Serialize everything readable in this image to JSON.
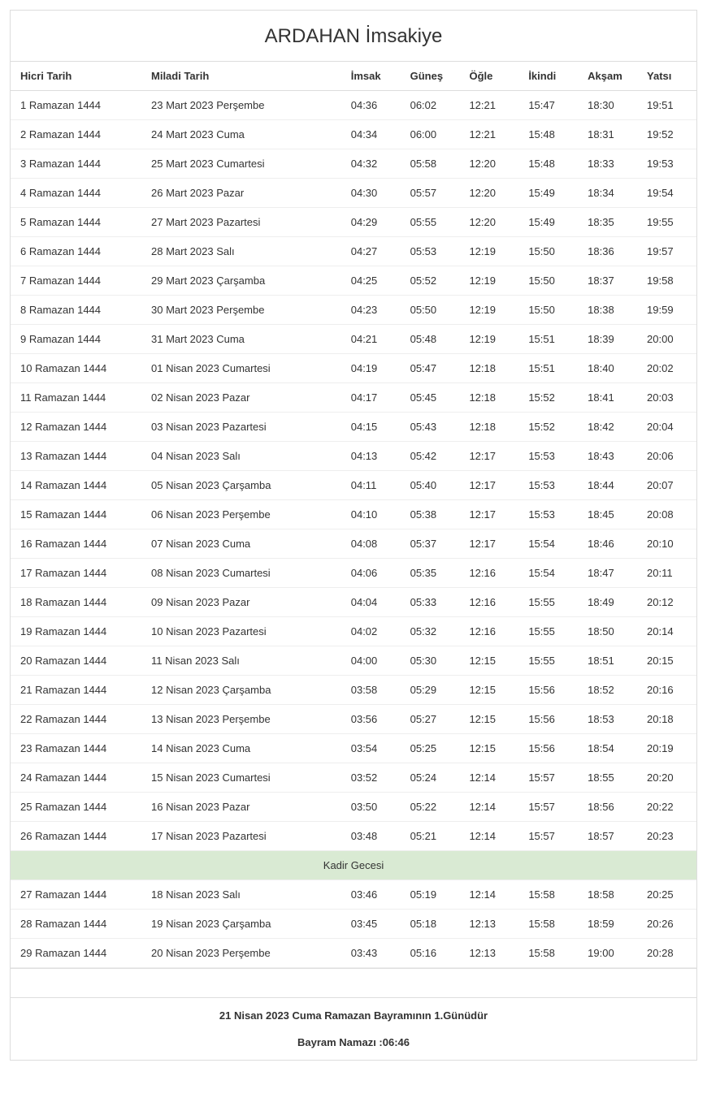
{
  "title": "ARDAHAN İmsakiye",
  "table": {
    "columns": [
      "Hicri Tarih",
      "Miladi Tarih",
      "İmsak",
      "Güneş",
      "Öğle",
      "İkindi",
      "Akşam",
      "Yatsı"
    ],
    "column_widths_pct": [
      19,
      29,
      8.6,
      8.6,
      8.6,
      8.6,
      8.6,
      8.6
    ],
    "border_color": "#dddddd",
    "row_border_color": "#eeeeee",
    "text_color": "#333333",
    "special_row_bg": "#d9ead3",
    "header_fontsize": 13,
    "cell_fontsize": 13,
    "title_fontsize": 24,
    "rows": [
      {
        "type": "data",
        "cells": [
          "1 Ramazan 1444",
          "23 Mart 2023 Perşembe",
          "04:36",
          "06:02",
          "12:21",
          "15:47",
          "18:30",
          "19:51"
        ]
      },
      {
        "type": "data",
        "cells": [
          "2 Ramazan 1444",
          "24 Mart 2023 Cuma",
          "04:34",
          "06:00",
          "12:21",
          "15:48",
          "18:31",
          "19:52"
        ]
      },
      {
        "type": "data",
        "cells": [
          "3 Ramazan 1444",
          "25 Mart 2023 Cumartesi",
          "04:32",
          "05:58",
          "12:20",
          "15:48",
          "18:33",
          "19:53"
        ]
      },
      {
        "type": "data",
        "cells": [
          "4 Ramazan 1444",
          "26 Mart 2023 Pazar",
          "04:30",
          "05:57",
          "12:20",
          "15:49",
          "18:34",
          "19:54"
        ]
      },
      {
        "type": "data",
        "cells": [
          "5 Ramazan 1444",
          "27 Mart 2023 Pazartesi",
          "04:29",
          "05:55",
          "12:20",
          "15:49",
          "18:35",
          "19:55"
        ]
      },
      {
        "type": "data",
        "cells": [
          "6 Ramazan 1444",
          "28 Mart 2023 Salı",
          "04:27",
          "05:53",
          "12:19",
          "15:50",
          "18:36",
          "19:57"
        ]
      },
      {
        "type": "data",
        "cells": [
          "7 Ramazan 1444",
          "29 Mart 2023 Çarşamba",
          "04:25",
          "05:52",
          "12:19",
          "15:50",
          "18:37",
          "19:58"
        ]
      },
      {
        "type": "data",
        "cells": [
          "8 Ramazan 1444",
          "30 Mart 2023 Perşembe",
          "04:23",
          "05:50",
          "12:19",
          "15:50",
          "18:38",
          "19:59"
        ]
      },
      {
        "type": "data",
        "cells": [
          "9 Ramazan 1444",
          "31 Mart 2023 Cuma",
          "04:21",
          "05:48",
          "12:19",
          "15:51",
          "18:39",
          "20:00"
        ]
      },
      {
        "type": "data",
        "cells": [
          "10 Ramazan 1444",
          "01 Nisan 2023 Cumartesi",
          "04:19",
          "05:47",
          "12:18",
          "15:51",
          "18:40",
          "20:02"
        ]
      },
      {
        "type": "data",
        "cells": [
          "11 Ramazan 1444",
          "02 Nisan 2023 Pazar",
          "04:17",
          "05:45",
          "12:18",
          "15:52",
          "18:41",
          "20:03"
        ]
      },
      {
        "type": "data",
        "cells": [
          "12 Ramazan 1444",
          "03 Nisan 2023 Pazartesi",
          "04:15",
          "05:43",
          "12:18",
          "15:52",
          "18:42",
          "20:04"
        ]
      },
      {
        "type": "data",
        "cells": [
          "13 Ramazan 1444",
          "04 Nisan 2023 Salı",
          "04:13",
          "05:42",
          "12:17",
          "15:53",
          "18:43",
          "20:06"
        ]
      },
      {
        "type": "data",
        "cells": [
          "14 Ramazan 1444",
          "05 Nisan 2023 Çarşamba",
          "04:11",
          "05:40",
          "12:17",
          "15:53",
          "18:44",
          "20:07"
        ]
      },
      {
        "type": "data",
        "cells": [
          "15 Ramazan 1444",
          "06 Nisan 2023 Perşembe",
          "04:10",
          "05:38",
          "12:17",
          "15:53",
          "18:45",
          "20:08"
        ]
      },
      {
        "type": "data",
        "cells": [
          "16 Ramazan 1444",
          "07 Nisan 2023 Cuma",
          "04:08",
          "05:37",
          "12:17",
          "15:54",
          "18:46",
          "20:10"
        ]
      },
      {
        "type": "data",
        "cells": [
          "17 Ramazan 1444",
          "08 Nisan 2023 Cumartesi",
          "04:06",
          "05:35",
          "12:16",
          "15:54",
          "18:47",
          "20:11"
        ]
      },
      {
        "type": "data",
        "cells": [
          "18 Ramazan 1444",
          "09 Nisan 2023 Pazar",
          "04:04",
          "05:33",
          "12:16",
          "15:55",
          "18:49",
          "20:12"
        ]
      },
      {
        "type": "data",
        "cells": [
          "19 Ramazan 1444",
          "10 Nisan 2023 Pazartesi",
          "04:02",
          "05:32",
          "12:16",
          "15:55",
          "18:50",
          "20:14"
        ]
      },
      {
        "type": "data",
        "cells": [
          "20 Ramazan 1444",
          "11 Nisan 2023 Salı",
          "04:00",
          "05:30",
          "12:15",
          "15:55",
          "18:51",
          "20:15"
        ]
      },
      {
        "type": "data",
        "cells": [
          "21 Ramazan 1444",
          "12 Nisan 2023 Çarşamba",
          "03:58",
          "05:29",
          "12:15",
          "15:56",
          "18:52",
          "20:16"
        ]
      },
      {
        "type": "data",
        "cells": [
          "22 Ramazan 1444",
          "13 Nisan 2023 Perşembe",
          "03:56",
          "05:27",
          "12:15",
          "15:56",
          "18:53",
          "20:18"
        ]
      },
      {
        "type": "data",
        "cells": [
          "23 Ramazan 1444",
          "14 Nisan 2023 Cuma",
          "03:54",
          "05:25",
          "12:15",
          "15:56",
          "18:54",
          "20:19"
        ]
      },
      {
        "type": "data",
        "cells": [
          "24 Ramazan 1444",
          "15 Nisan 2023 Cumartesi",
          "03:52",
          "05:24",
          "12:14",
          "15:57",
          "18:55",
          "20:20"
        ]
      },
      {
        "type": "data",
        "cells": [
          "25 Ramazan 1444",
          "16 Nisan 2023 Pazar",
          "03:50",
          "05:22",
          "12:14",
          "15:57",
          "18:56",
          "20:22"
        ]
      },
      {
        "type": "data",
        "cells": [
          "26 Ramazan 1444",
          "17 Nisan 2023 Pazartesi",
          "03:48",
          "05:21",
          "12:14",
          "15:57",
          "18:57",
          "20:23"
        ]
      },
      {
        "type": "special",
        "label": "Kadir Gecesi"
      },
      {
        "type": "data",
        "cells": [
          "27 Ramazan 1444",
          "18 Nisan 2023 Salı",
          "03:46",
          "05:19",
          "12:14",
          "15:58",
          "18:58",
          "20:25"
        ]
      },
      {
        "type": "data",
        "cells": [
          "28 Ramazan 1444",
          "19 Nisan 2023 Çarşamba",
          "03:45",
          "05:18",
          "12:13",
          "15:58",
          "18:59",
          "20:26"
        ]
      },
      {
        "type": "data",
        "cells": [
          "29 Ramazan 1444",
          "20 Nisan 2023 Perşembe",
          "03:43",
          "05:16",
          "12:13",
          "15:58",
          "19:00",
          "20:28"
        ]
      }
    ]
  },
  "footer": {
    "line1": "21 Nisan 2023 Cuma Ramazan Bayramının 1.Günüdür",
    "line2": "Bayram Namazı :06:46"
  }
}
